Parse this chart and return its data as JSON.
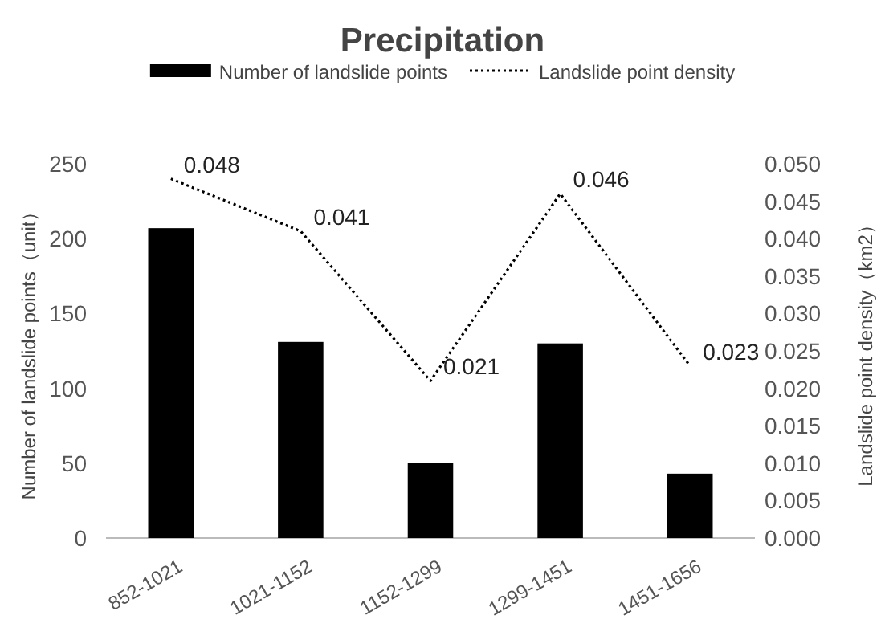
{
  "chart_data": {
    "type": "bar",
    "title": "Precipitation",
    "ylabel": "Number of landslide points（unit）",
    "y2label": "Landslide point density（km2）",
    "categories": [
      "852-1021",
      "1021-1152",
      "1152-1299",
      "1299-1451",
      "1451-1656"
    ],
    "series": [
      {
        "name": "Number of landslide points",
        "color": "#000000",
        "values": [
          207,
          131,
          50,
          130,
          43
        ]
      },
      {
        "name": "Landslide point density",
        "type": "line",
        "axis": "y2",
        "color": "#000000",
        "line_style": "dotted",
        "values": [
          0.048,
          0.041,
          0.021,
          0.046,
          0.023
        ],
        "value_labels": [
          "0.048",
          "0.041",
          "0.021",
          "0.046",
          "0.023"
        ]
      }
    ],
    "ylim": [
      0,
      250
    ],
    "yticks": [
      0,
      50,
      100,
      150,
      200,
      250
    ],
    "y2lim": [
      0,
      0.05
    ],
    "y2ticks": [
      {
        "value": 0,
        "label": "0.000"
      },
      {
        "value": 0.005,
        "label": "0.005"
      },
      {
        "value": 0.01,
        "label": "0.010"
      },
      {
        "value": 0.015,
        "label": "0.015"
      },
      {
        "value": 0.02,
        "label": "0.020"
      },
      {
        "value": 0.025,
        "label": "0.025"
      },
      {
        "value": 0.03,
        "label": "0.030"
      },
      {
        "value": 0.035,
        "label": "0.035"
      },
      {
        "value": 0.04,
        "label": "0.040"
      },
      {
        "value": 0.045,
        "label": "0.045"
      },
      {
        "value": 0.05,
        "label": "0.050"
      }
    ],
    "grid": false,
    "legend": "top"
  }
}
